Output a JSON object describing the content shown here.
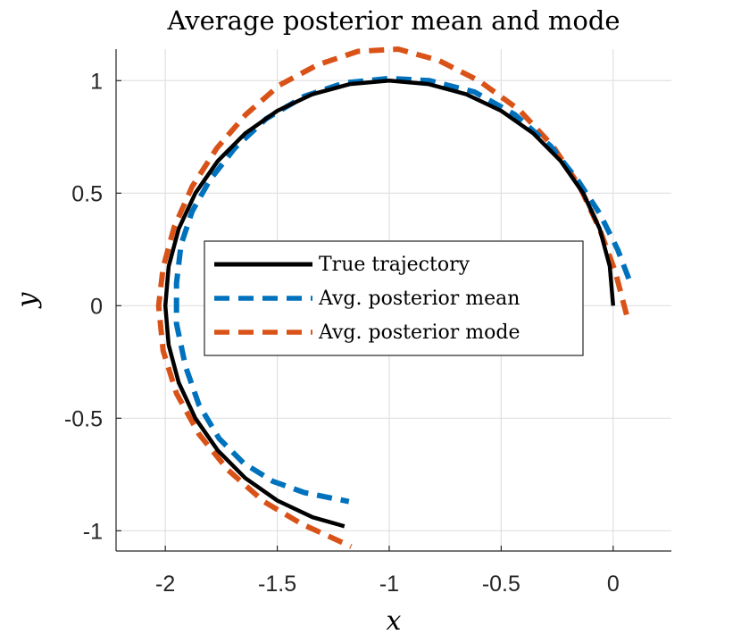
{
  "chart_data": {
    "type": "line",
    "title": "Average posterior mean and mode",
    "xlabel": "x",
    "ylabel": "y",
    "xlim": [
      -2.22,
      0.26
    ],
    "ylim": [
      -1.09,
      1.14
    ],
    "grid": true,
    "legend_position": "center-left",
    "x_ticks": [
      -2,
      -1.5,
      -1,
      -0.5,
      0
    ],
    "x_tick_labels": [
      "-2",
      "-1.5",
      "-1",
      "-0.5",
      "0"
    ],
    "y_ticks": [
      -1,
      -0.5,
      0,
      0.5,
      1
    ],
    "y_tick_labels": [
      "-1",
      "-0.5",
      "0",
      "0.5",
      "1"
    ],
    "series": [
      {
        "name": "True trajectory",
        "color": "#000000",
        "style": "solid",
        "points": [
          [
            0,
            0
          ],
          [
            -0.015,
            0.175
          ],
          [
            -0.06,
            0.342
          ],
          [
            -0.134,
            0.5
          ],
          [
            -0.234,
            0.643
          ],
          [
            -0.357,
            0.766
          ],
          [
            -0.5,
            0.866
          ],
          [
            -0.658,
            0.94
          ],
          [
            -0.826,
            0.985
          ],
          [
            -1,
            1
          ],
          [
            -1.174,
            0.985
          ],
          [
            -1.342,
            0.94
          ],
          [
            -1.5,
            0.866
          ],
          [
            -1.643,
            0.766
          ],
          [
            -1.766,
            0.643
          ],
          [
            -1.866,
            0.5
          ],
          [
            -1.94,
            0.342
          ],
          [
            -1.985,
            0.174
          ],
          [
            -2,
            0
          ],
          [
            -1.985,
            -0.174
          ],
          [
            -1.94,
            -0.342
          ],
          [
            -1.866,
            -0.5
          ],
          [
            -1.766,
            -0.643
          ],
          [
            -1.643,
            -0.766
          ],
          [
            -1.5,
            -0.866
          ],
          [
            -1.342,
            -0.94
          ],
          [
            -1.2,
            -0.98
          ]
        ]
      },
      {
        "name": "Avg. posterior mean",
        "color": "#0072BD",
        "style": "dashed",
        "points": [
          [
            0.07,
            0.12
          ],
          [
            0.02,
            0.25
          ],
          [
            -0.06,
            0.41
          ],
          [
            -0.16,
            0.56
          ],
          [
            -0.28,
            0.71
          ],
          [
            -0.44,
            0.85
          ],
          [
            -0.62,
            0.95
          ],
          [
            -0.82,
            1.0
          ],
          [
            -1.0,
            1.01
          ],
          [
            -1.2,
            0.99
          ],
          [
            -1.38,
            0.93
          ],
          [
            -1.55,
            0.83
          ],
          [
            -1.69,
            0.7
          ],
          [
            -1.8,
            0.56
          ],
          [
            -1.88,
            0.42
          ],
          [
            -1.93,
            0.27
          ],
          [
            -1.95,
            0.1
          ],
          [
            -1.95,
            -0.08
          ],
          [
            -1.91,
            -0.27
          ],
          [
            -1.85,
            -0.44
          ],
          [
            -1.76,
            -0.59
          ],
          [
            -1.65,
            -0.7
          ],
          [
            -1.52,
            -0.78
          ],
          [
            -1.38,
            -0.83
          ],
          [
            -1.18,
            -0.87
          ]
        ]
      },
      {
        "name": "Avg. posterior mode",
        "color": "#D95319",
        "style": "dashed",
        "points": [
          [
            0.06,
            -0.04
          ],
          [
            0.01,
            0.15
          ],
          [
            -0.06,
            0.34
          ],
          [
            -0.15,
            0.53
          ],
          [
            -0.27,
            0.71
          ],
          [
            -0.42,
            0.87
          ],
          [
            -0.6,
            1.0
          ],
          [
            -0.78,
            1.09
          ],
          [
            -0.96,
            1.14
          ],
          [
            -1.14,
            1.13
          ],
          [
            -1.32,
            1.07
          ],
          [
            -1.49,
            0.98
          ],
          [
            -1.64,
            0.85
          ],
          [
            -1.77,
            0.7
          ],
          [
            -1.88,
            0.53
          ],
          [
            -1.96,
            0.35
          ],
          [
            -2.01,
            0.17
          ],
          [
            -2.03,
            0.0
          ],
          [
            -2.01,
            -0.2
          ],
          [
            -1.95,
            -0.39
          ],
          [
            -1.85,
            -0.57
          ],
          [
            -1.72,
            -0.73
          ],
          [
            -1.56,
            -0.87
          ],
          [
            -1.39,
            -0.97
          ],
          [
            -1.17,
            -1.07
          ]
        ]
      }
    ]
  }
}
